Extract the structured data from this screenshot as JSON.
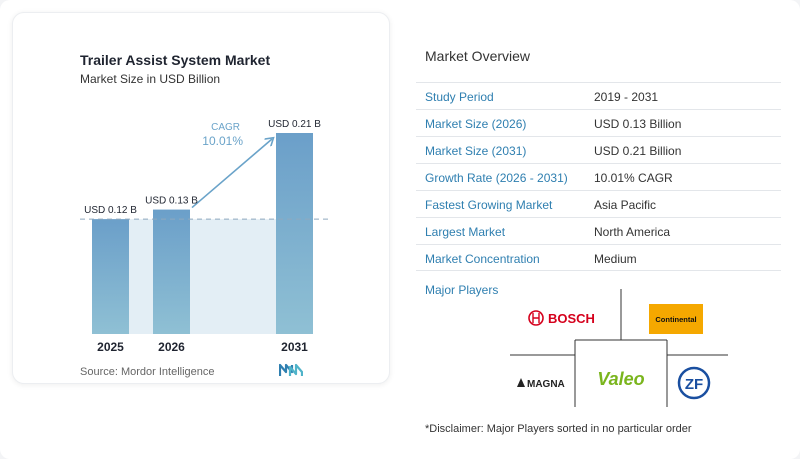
{
  "chart_data": {
    "type": "bar",
    "title": "Trailer Assist System Market",
    "subtitle": "Market Size in USD Billion",
    "categories": [
      "2025",
      "2026",
      "2031"
    ],
    "values": [
      0.12,
      0.13,
      0.21
    ],
    "data_labels": [
      "USD 0.12 B",
      "USD 0.13 B",
      "USD 0.21 B"
    ],
    "cagr_label": "CAGR",
    "cagr_value": "10.01%",
    "xlabel": "",
    "ylabel": "",
    "ylim": [
      0,
      0.21
    ],
    "grid": false,
    "colors": {
      "bar_top": "#6b9fc9",
      "bar_bottom": "#8fc0d4",
      "highlight_area": "#e3eef5",
      "arrow": "#6aa3c9",
      "reference_line": "#8fa9bf"
    }
  },
  "source_text": "Source:  Mordor Intelligence",
  "overview": {
    "title": "Market Overview",
    "rows": [
      {
        "label": "Study Period",
        "value": "2019 - 2031"
      },
      {
        "label": "Market Size (2026)",
        "value": "USD 0.13 Billion"
      },
      {
        "label": "Market Size (2031)",
        "value": "USD 0.21 Billion"
      },
      {
        "label": "Growth Rate (2026 - 2031)",
        "value": "10.01% CAGR"
      },
      {
        "label": "Fastest Growing Market",
        "value": "Asia Pacific"
      },
      {
        "label": "Largest Market",
        "value": "North America"
      },
      {
        "label": "Market Concentration",
        "value": "Medium"
      }
    ]
  },
  "players": {
    "title": "Major Players",
    "names": [
      "BOSCH",
      "Continental",
      "MAGNA",
      "Valeo",
      "ZF"
    ]
  },
  "disclaimer": "*Disclaimer: Major Players sorted in no particular order"
}
